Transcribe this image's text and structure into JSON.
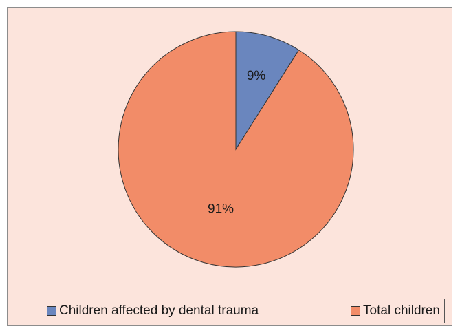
{
  "colors": {
    "background": "#fce4dc",
    "outline": "#333333"
  },
  "chart_data": {
    "type": "pie",
    "title": "",
    "legend_position": "bottom",
    "slices": [
      {
        "name": "Children affected by dental trauma",
        "value": 9,
        "label": "9%",
        "color": "#6a86be"
      },
      {
        "name": "Total children",
        "value": 91,
        "label": "91%",
        "color": "#f28c68"
      }
    ]
  }
}
